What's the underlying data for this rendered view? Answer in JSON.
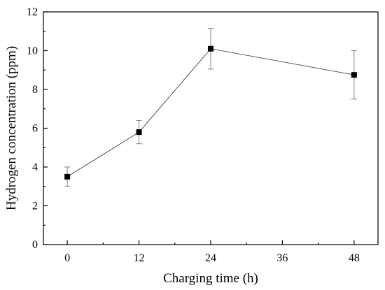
{
  "chart_data": {
    "type": "line",
    "xlabel": "Charging time (h)",
    "ylabel": "Hydrogen concentration (ppm)",
    "xlim": [
      -4,
      52
    ],
    "ylim": [
      0,
      12
    ],
    "xticks": [
      0,
      12,
      24,
      36,
      48
    ],
    "yticks": [
      0,
      2,
      4,
      6,
      8,
      10,
      12
    ],
    "grid": false,
    "series": [
      {
        "x": [
          0,
          12,
          24,
          48
        ],
        "y": [
          3.5,
          5.8,
          10.1,
          8.75
        ],
        "yerr": [
          0.5,
          0.6,
          1.05,
          1.25
        ],
        "marker": "square",
        "color": "#000000",
        "line_color": "#444444"
      }
    ]
  }
}
